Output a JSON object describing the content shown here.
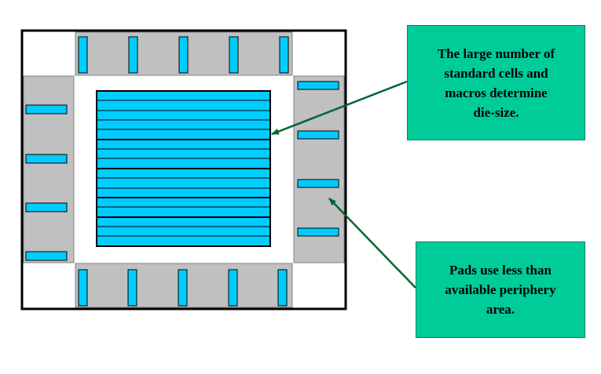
{
  "colors": {
    "pad_region": "#c0c0c0",
    "cell_fill": "#00ccff",
    "callout_fill": "#00cc99",
    "arrow": "#006633",
    "die_border": "#000000"
  },
  "callouts": {
    "core": {
      "lines": [
        "The large number of",
        "standard cells and",
        "macros determine",
        "die-size."
      ]
    },
    "pads": {
      "lines": [
        "Pads use less than",
        "available periphery",
        "area."
      ]
    }
  }
}
